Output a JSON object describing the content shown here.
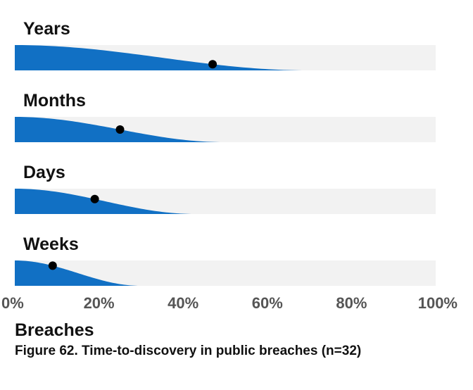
{
  "caption": "Figure 62. Time-to-discovery in public breaches (n=32)",
  "chart_data": {
    "type": "area",
    "title": "",
    "xlabel": "Breaches",
    "ylabel": "",
    "xlim": [
      0,
      100
    ],
    "x_ticks": [
      "0%",
      "20%",
      "40%",
      "60%",
      "80%",
      "100%"
    ],
    "grid": false,
    "colors": {
      "fill": "#1170c4",
      "track": "#f2f2f2",
      "point": "#000000"
    },
    "series": [
      {
        "name": "Years",
        "point": 47,
        "extent": 70
      },
      {
        "name": "Months",
        "point": 25,
        "extent": 50
      },
      {
        "name": "Days",
        "point": 19,
        "extent": 43
      },
      {
        "name": "Weeks",
        "point": 9,
        "extent": 30
      }
    ]
  }
}
